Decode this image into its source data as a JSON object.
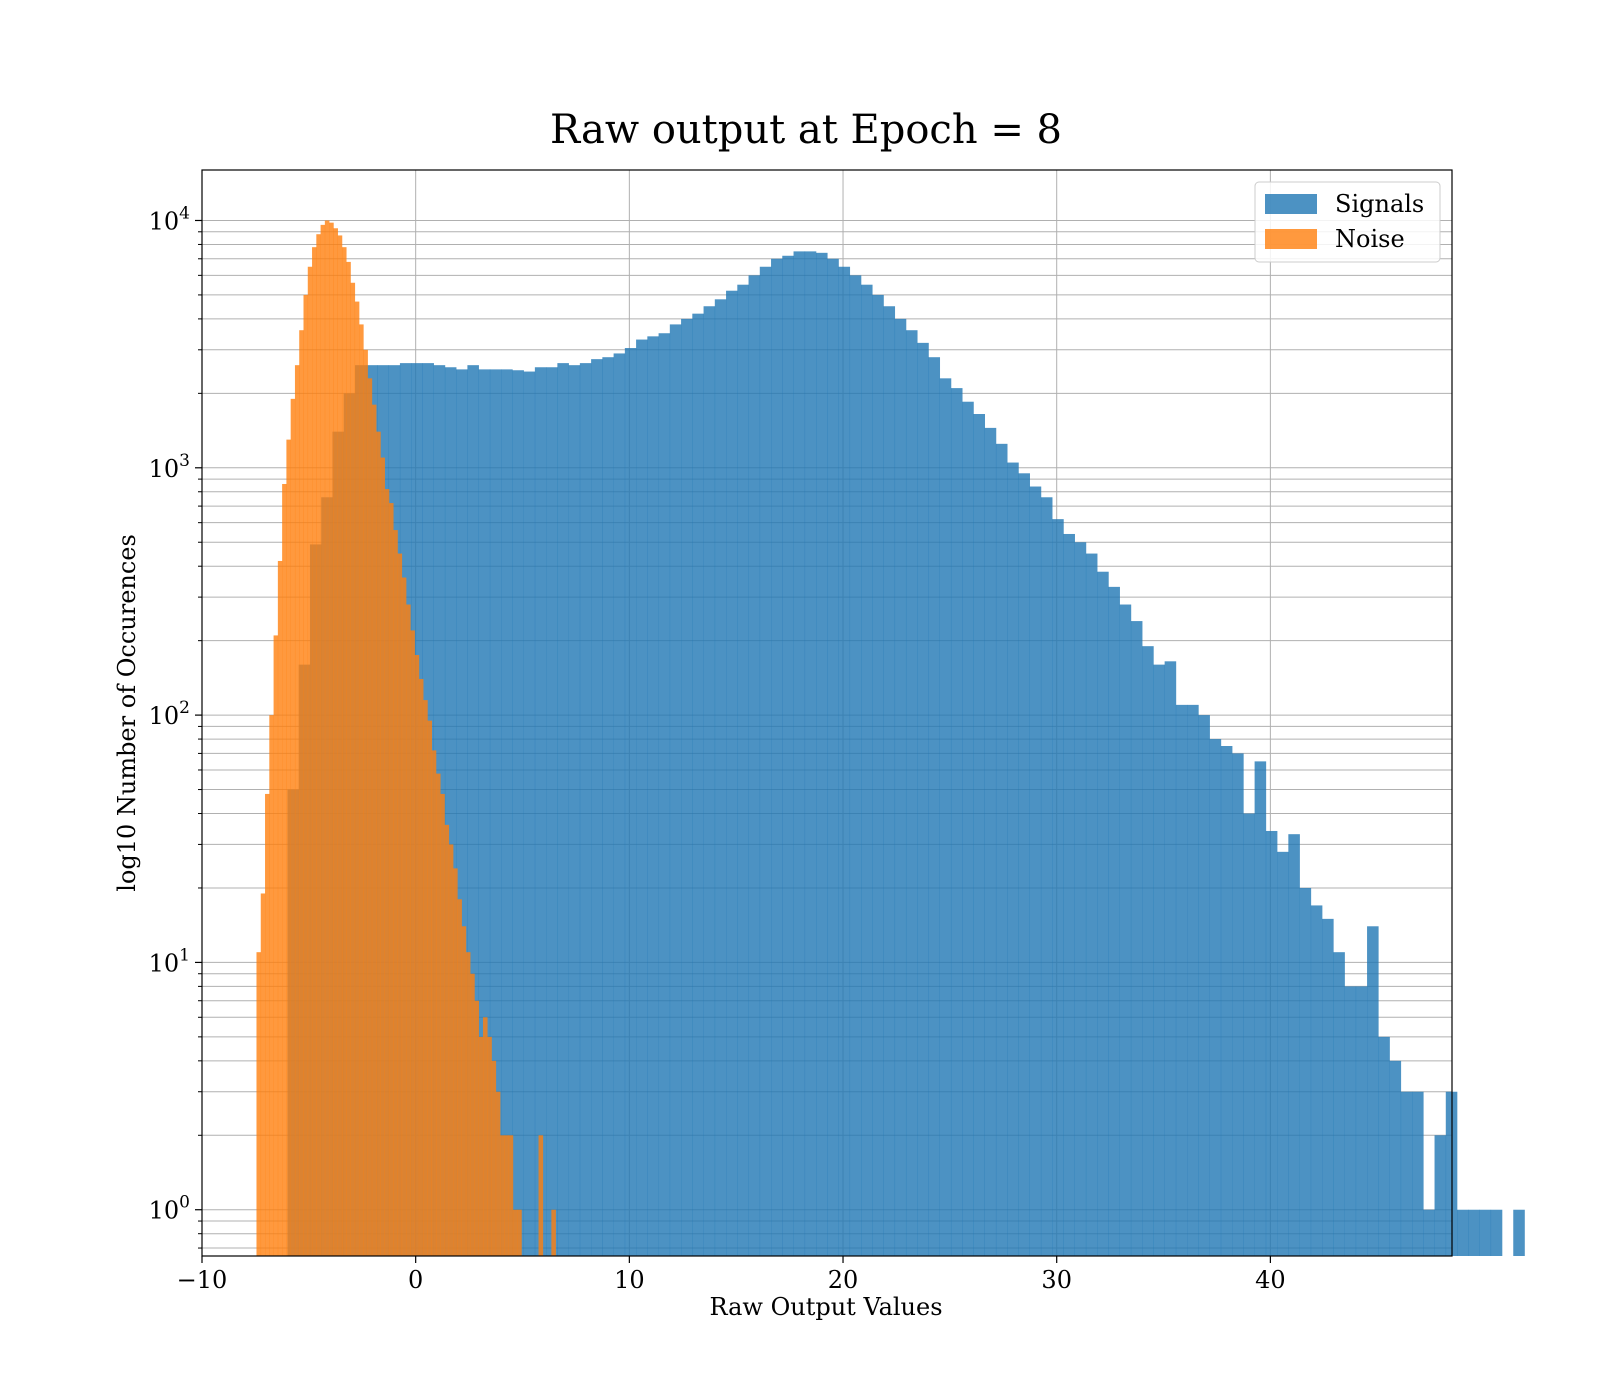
{
  "chart_data": {
    "type": "histogram",
    "title": "Raw output at Epoch = 8",
    "xlabel": "Raw Output Values",
    "ylabel": "log10 Number of Occurences",
    "xlim": [
      -10,
      48.5
    ],
    "ylim": [
      0.65,
      16000
    ],
    "yscale": "log",
    "grid": true,
    "legend_position": "top-right",
    "xticks": [
      -10,
      0,
      10,
      20,
      30,
      40
    ],
    "xtick_labels": [
      "−10",
      "0",
      "10",
      "20",
      "30",
      "40"
    ],
    "yticks": [
      {
        "value": 1,
        "base": "10",
        "exp": "0"
      },
      {
        "value": 10,
        "base": "10",
        "exp": "1"
      },
      {
        "value": 100,
        "base": "10",
        "exp": "2"
      },
      {
        "value": 1000,
        "base": "10",
        "exp": "3"
      },
      {
        "value": 10000,
        "base": "10",
        "exp": "4"
      }
    ],
    "series": [
      {
        "name": "Signals",
        "color": "#1f77b4",
        "opacity": 0.8,
        "bin_start": -6.0,
        "bin_width": 0.5263,
        "values": [
          50,
          160,
          490,
          760,
          1400,
          2000,
          2600,
          2600,
          2600,
          2600,
          2650,
          2650,
          2650,
          2600,
          2550,
          2500,
          2600,
          2500,
          2500,
          2500,
          2480,
          2450,
          2550,
          2550,
          2650,
          2600,
          2650,
          2750,
          2800,
          2900,
          3050,
          3300,
          3400,
          3500,
          3800,
          4000,
          4200,
          4500,
          4800,
          5200,
          5500,
          6000,
          6500,
          7000,
          7200,
          7500,
          7500,
          7400,
          7000,
          6500,
          6000,
          5500,
          5000,
          4500,
          4000,
          3600,
          3200,
          2800,
          2300,
          2100,
          1850,
          1650,
          1450,
          1250,
          1050,
          950,
          840,
          760,
          620,
          540,
          500,
          450,
          380,
          330,
          280,
          240,
          190,
          160,
          165,
          110,
          110,
          100,
          80,
          75,
          70,
          40,
          65,
          34,
          28,
          33,
          20,
          17,
          15,
          11,
          8,
          8,
          14,
          5,
          4,
          3,
          3,
          1,
          2,
          3,
          1,
          1,
          1,
          1,
          0,
          1
        ]
      },
      {
        "name": "Noise",
        "color": "#ff7f0e",
        "opacity": 0.8,
        "bin_start": -7.45,
        "bin_width": 0.2,
        "values": [
          11,
          19,
          48,
          100,
          210,
          420,
          860,
          1300,
          1900,
          2600,
          3600,
          5000,
          6500,
          7800,
          8800,
          9600,
          10000,
          9800,
          9300,
          8700,
          7800,
          6800,
          5600,
          4700,
          3800,
          3000,
          2300,
          1800,
          1400,
          1100,
          820,
          720,
          560,
          450,
          360,
          280,
          220,
          175,
          140,
          115,
          95,
          72,
          58,
          48,
          36,
          30,
          24,
          18,
          14,
          11,
          9,
          7,
          5,
          6,
          5,
          4,
          3,
          2,
          2,
          2,
          1,
          1,
          0,
          0,
          0,
          0,
          2,
          0,
          0,
          1,
          0
        ]
      }
    ]
  }
}
